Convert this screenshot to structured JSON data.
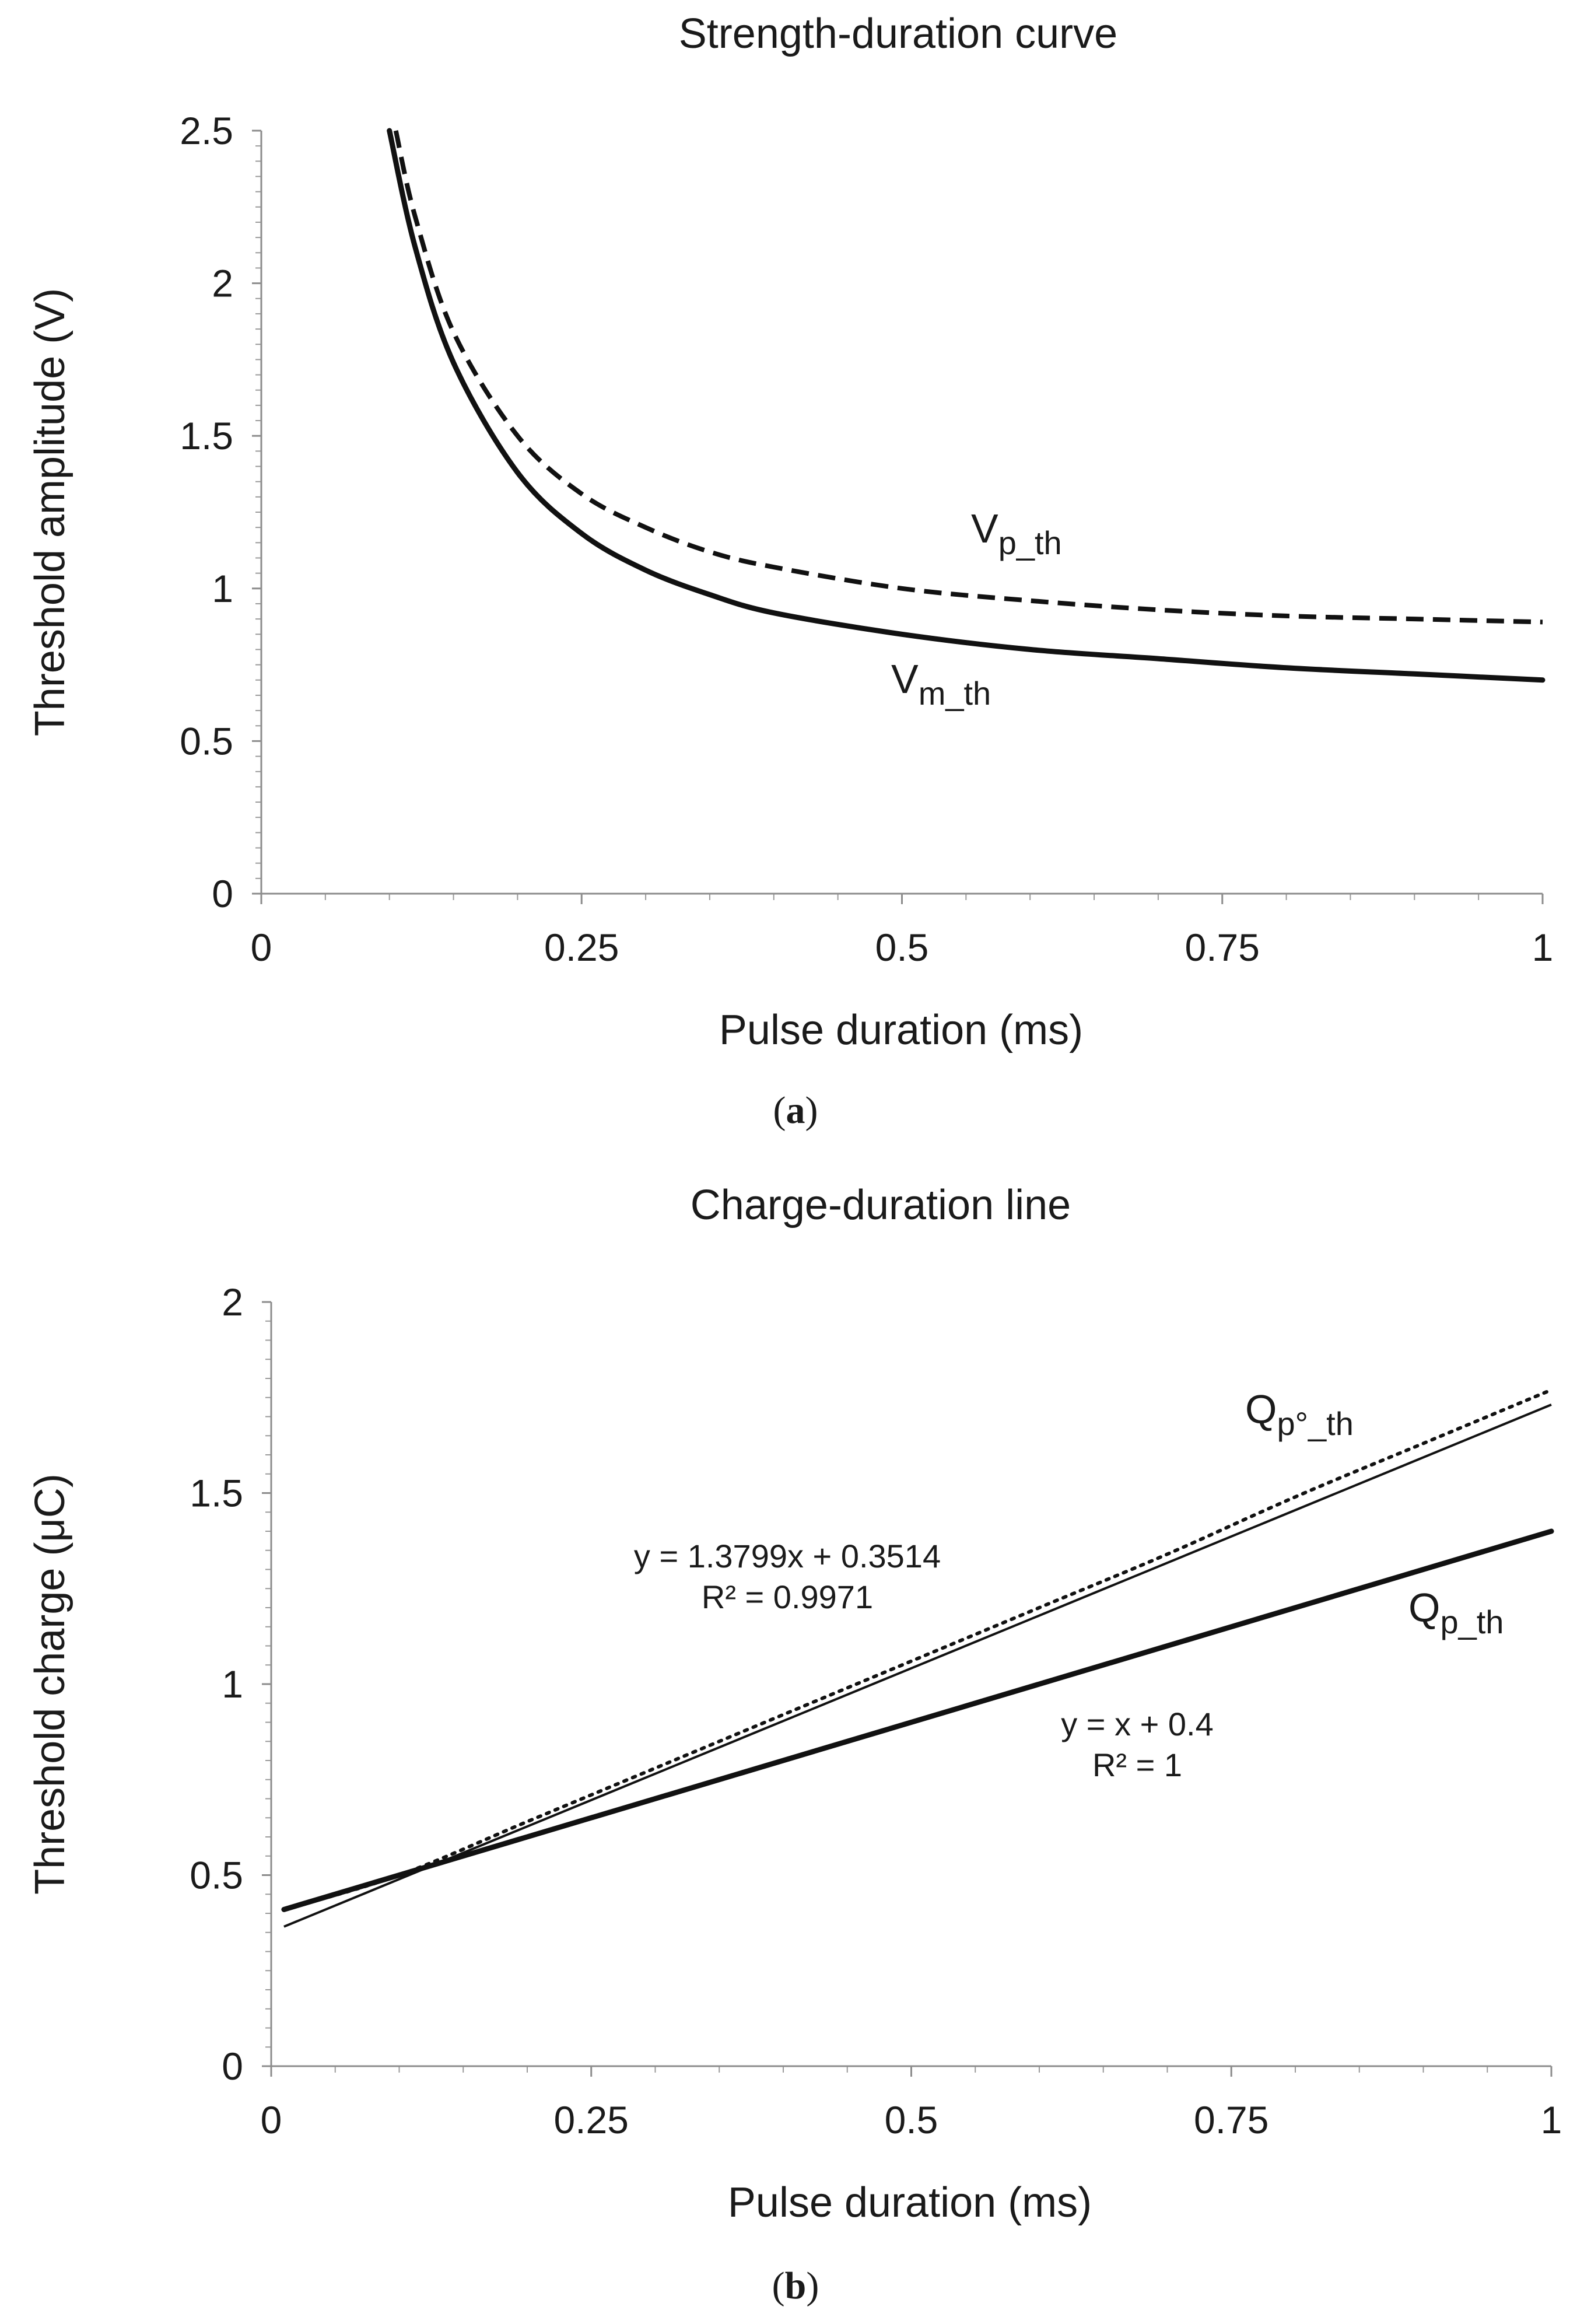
{
  "chart_data": [
    {
      "panel": "a",
      "panel_label_open": "(",
      "panel_label_letter": "a",
      "panel_label_close": ")",
      "type": "line",
      "title": "Strength-duration curve",
      "xlabel": "Pulse duration (ms)",
      "ylabel": "Threshold amplitude (V)",
      "xlim": [
        0,
        1
      ],
      "ylim": [
        0,
        2.5
      ],
      "xticks": [
        0,
        0.25,
        0.5,
        0.75,
        1
      ],
      "xtick_labels": [
        "0",
        "0.25",
        "0.5",
        "0.75",
        "1"
      ],
      "yticks": [
        0,
        0.5,
        1,
        1.5,
        2,
        2.5
      ],
      "ytick_labels": [
        "0",
        "0.5",
        "1",
        "1.5",
        "2",
        "2.5"
      ],
      "grid": false,
      "series": [
        {
          "name": "V_m_th",
          "label_main": "V",
          "label_sub": "m_th",
          "style": "solid",
          "x": [
            0.1,
            0.12,
            0.15,
            0.2,
            0.25,
            0.3,
            0.35,
            0.4,
            0.5,
            0.6,
            0.7,
            0.8,
            0.9,
            1.0
          ],
          "y": [
            2.5,
            2.12,
            1.74,
            1.38,
            1.18,
            1.06,
            0.98,
            0.92,
            0.85,
            0.8,
            0.77,
            0.74,
            0.72,
            0.7
          ]
        },
        {
          "name": "V_p_th",
          "label_main": "V",
          "label_sub": "p_th",
          "style": "dashed",
          "x": [
            0.105,
            0.12,
            0.15,
            0.2,
            0.25,
            0.3,
            0.35,
            0.4,
            0.5,
            0.6,
            0.7,
            0.8,
            0.9,
            1.0
          ],
          "y": [
            2.5,
            2.22,
            1.84,
            1.5,
            1.31,
            1.2,
            1.12,
            1.07,
            1.0,
            0.96,
            0.93,
            0.91,
            0.9,
            0.89
          ]
        }
      ]
    },
    {
      "panel": "b",
      "panel_label_open": "(",
      "panel_label_letter": "b",
      "panel_label_close": ")",
      "type": "line",
      "title": "Charge-duration line",
      "xlabel": "Pulse duration (ms)",
      "ylabel": "Threshold charge (μC)",
      "xlim": [
        0,
        1
      ],
      "ylim": [
        0,
        2
      ],
      "xticks": [
        0,
        0.25,
        0.5,
        0.75,
        1
      ],
      "xtick_labels": [
        "0",
        "0.25",
        "0.5",
        "0.75",
        "1"
      ],
      "yticks": [
        0,
        0.5,
        1,
        1.5,
        2
      ],
      "ytick_labels": [
        "0",
        "0.5",
        "1",
        "1.5",
        "2"
      ],
      "grid": false,
      "series": [
        {
          "name": "Q_p_th",
          "label_main": "Q",
          "label_sub": "p_th",
          "style": "thick-solid",
          "x": [
            0.01,
            1.0
          ],
          "y": [
            0.41,
            1.4
          ]
        },
        {
          "name": "Q_p°_th",
          "label_main": "Q",
          "label_sub": "p°_th",
          "style": "dotted",
          "x": [
            0.01,
            0.1,
            0.2,
            0.3,
            0.4,
            0.5,
            0.6,
            0.7,
            0.8,
            0.9,
            1.0
          ],
          "y": [
            0.41,
            0.5,
            0.64,
            0.78,
            0.92,
            1.06,
            1.2,
            1.34,
            1.49,
            1.63,
            1.77
          ]
        },
        {
          "name": "Q_p°_th linear fit",
          "label_main": "",
          "label_sub": "",
          "style": "thin-solid",
          "x": [
            0.01,
            1.0
          ],
          "y": [
            0.3652,
            1.7313
          ]
        }
      ],
      "annotations": {
        "fit_equation": "y = 1.3799x + 0.3514",
        "fit_r2": "R² = 0.9971",
        "line_equation": "y = x + 0.4",
        "line_r2": "R² = 1"
      }
    }
  ]
}
